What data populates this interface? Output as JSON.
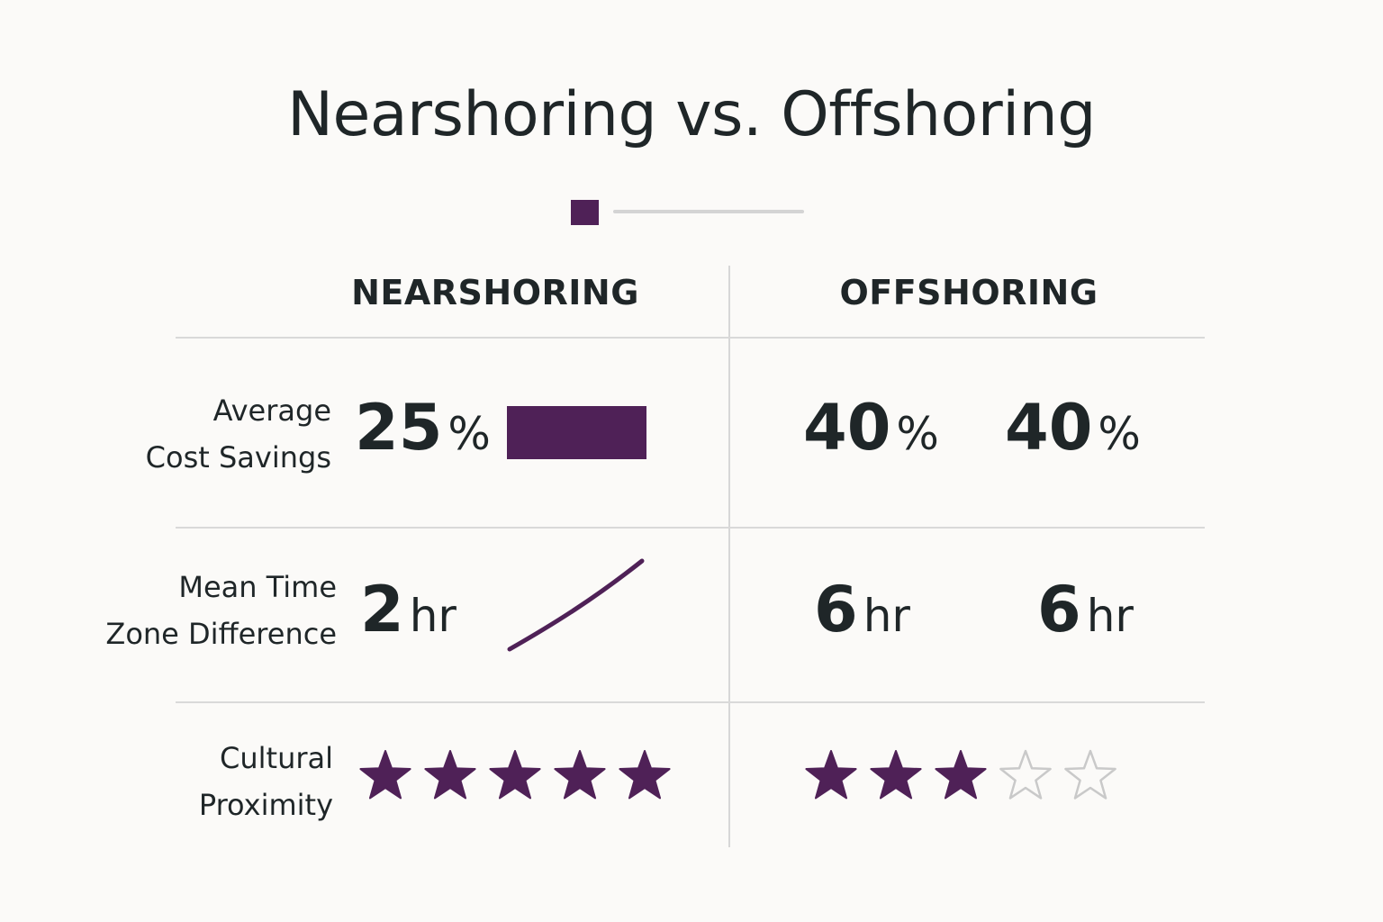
{
  "title": "Nearshoring vs. Offshoring",
  "colors": {
    "accent": "#4f2157",
    "divider": "#d9d9d9",
    "text": "#1f2628",
    "star_empty": "#c9c9c9"
  },
  "columns": {
    "nearshoring": "NEARSHORING",
    "offshoring": "OFFSHORING"
  },
  "rows": {
    "cost_savings": {
      "label_line1": "Average",
      "label_line2": "Cost Savings",
      "nearshoring": {
        "value": "25",
        "unit": "%",
        "bar_fraction": 0.625
      },
      "offshoring_a": {
        "value": "40",
        "unit": "%"
      },
      "offshoring_b": {
        "value": "40",
        "unit": "%"
      }
    },
    "time_zone": {
      "label_line1": "Mean Time",
      "label_line2": "Zone Difference",
      "nearshoring": {
        "value": "2",
        "unit": "hr"
      },
      "offshoring_a": {
        "value": "6",
        "unit": "hr"
      },
      "offshoring_b": {
        "value": "6",
        "unit": "hr"
      }
    },
    "cultural": {
      "label_line1": "Cultural",
      "label_line2": "Proximity",
      "nearshoring_rating": 5,
      "offshoring_rating": 3,
      "max_rating": 5
    }
  },
  "icons": {
    "filled_star": "star-filled-icon",
    "empty_star": "star-outline-icon",
    "trend_line": "trend-line-icon"
  }
}
